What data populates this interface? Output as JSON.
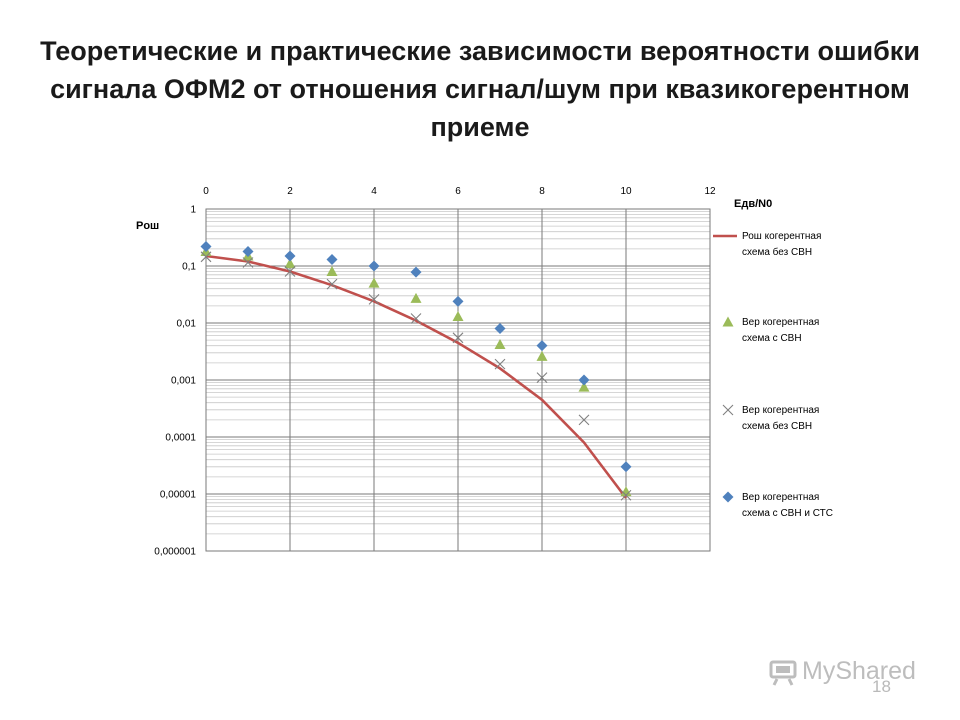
{
  "slide": {
    "title": "Теоретические и практические зависимости вероятности ошибки сигнала ОФМ2 от отношения сигнал/шум при квазикогерентном приеме",
    "page_number": "18",
    "watermark": "MyShared"
  },
  "chart_data": {
    "type": "scatter",
    "title": "",
    "xlabel": "Eдв/N0",
    "ylabel": "Pош",
    "x_axis_position": "top",
    "y_scale": "log",
    "xlim": [
      0,
      12
    ],
    "ylim": [
      1e-06,
      1
    ],
    "x_ticks": [
      "0",
      "2",
      "4",
      "6",
      "8",
      "10",
      "12"
    ],
    "y_ticks": [
      "1",
      "0,1",
      "0,01",
      "0,001",
      "0,0001",
      "0,00001",
      "0,000001"
    ],
    "y_tick_values": [
      1,
      0.1,
      0.01,
      0.001,
      0.0001,
      1e-05,
      1e-06
    ],
    "grid": true,
    "legend_position": "right",
    "series": [
      {
        "name": "Рош когерентная схема без СВН",
        "type": "line",
        "color": "#c0504d",
        "x": [
          0,
          1,
          2,
          3,
          4,
          5,
          6,
          7,
          8,
          9,
          10
        ],
        "y": [
          0.15,
          0.12,
          0.08,
          0.046,
          0.024,
          0.011,
          0.0045,
          0.0016,
          0.00045,
          8e-05,
          8.5e-06
        ]
      },
      {
        "name": "Вер когерентная схема с СВН",
        "type": "scatter",
        "marker": "triangle",
        "color": "#9bbb59",
        "x": [
          0,
          1,
          2,
          3,
          4,
          5,
          6,
          7,
          8,
          9,
          10
        ],
        "y": [
          0.18,
          0.15,
          0.11,
          0.08,
          0.05,
          0.027,
          0.013,
          0.0042,
          0.0026,
          0.00075,
          1.1e-05
        ]
      },
      {
        "name": "Вер когерентная схема без СВН",
        "type": "scatter",
        "marker": "x",
        "color": "#7f7f7f",
        "x": [
          0,
          1,
          2,
          3,
          4,
          5,
          6,
          7,
          8,
          9,
          10
        ],
        "y": [
          0.145,
          0.115,
          0.08,
          0.048,
          0.026,
          0.012,
          0.0055,
          0.0019,
          0.0011,
          0.0002,
          9.5e-06
        ]
      },
      {
        "name": "Вер когерентная схема с СВН и СТС",
        "type": "scatter",
        "marker": "diamond",
        "color": "#4f81bd",
        "x": [
          0,
          1,
          2,
          3,
          4,
          5,
          6,
          7,
          8,
          9,
          10
        ],
        "y": [
          0.22,
          0.18,
          0.15,
          0.13,
          0.1,
          0.078,
          0.024,
          0.008,
          0.004,
          0.001,
          3e-05
        ]
      }
    ]
  }
}
